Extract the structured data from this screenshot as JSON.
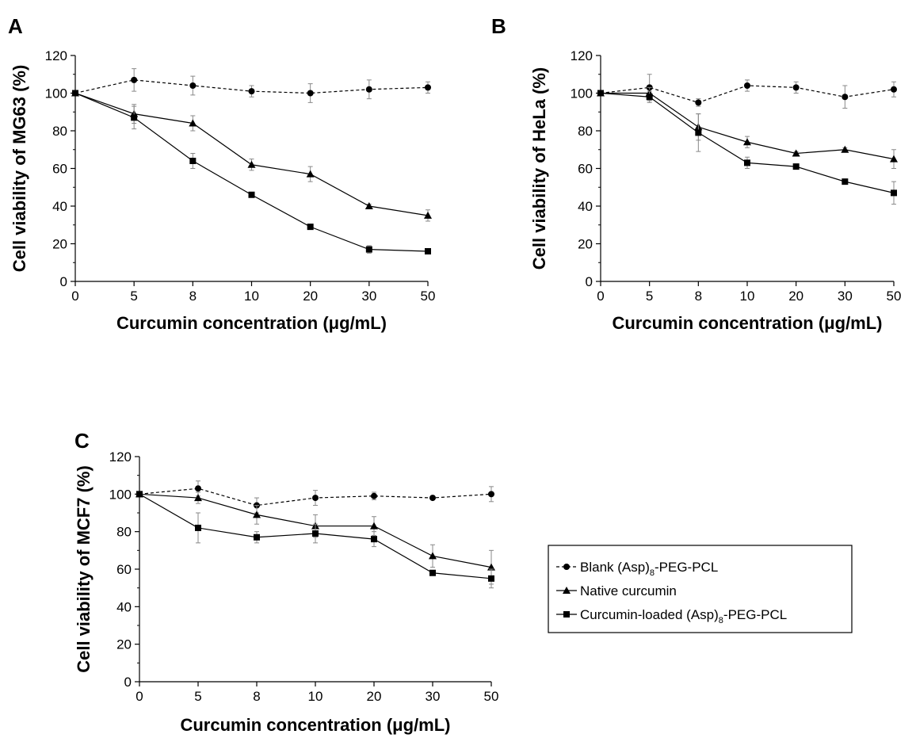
{
  "legend": {
    "items": [
      {
        "series": "blank",
        "prefix": "Blank (Asp)",
        "sub": "8",
        "suffix": "-PEG-PCL"
      },
      {
        "series": "native",
        "prefix": "Native curcumin",
        "sub": "",
        "suffix": ""
      },
      {
        "series": "loaded",
        "prefix": "Curcumin-loaded (Asp)",
        "sub": "8",
        "suffix": "-PEG-PCL"
      }
    ]
  },
  "chart_data": [
    {
      "panel": "A",
      "type": "line",
      "categories": [
        "0",
        "5",
        "8",
        "10",
        "20",
        "30",
        "50"
      ],
      "xlabel": "Curcumin concentration (μg/mL)",
      "ylabel": "Cell viability of MG63 (%)",
      "ylim": [
        0,
        120
      ],
      "yticks": [
        0,
        20,
        40,
        60,
        80,
        100,
        120
      ],
      "series": [
        {
          "name": "Blank (Asp)8-PEG-PCL",
          "key": "blank",
          "values": [
            100,
            107,
            104,
            101,
            100,
            102,
            103
          ],
          "errors": [
            0,
            6,
            5,
            3,
            5,
            5,
            3
          ]
        },
        {
          "name": "Native curcumin",
          "key": "native",
          "values": [
            100,
            89,
            84,
            62,
            57,
            40,
            35
          ],
          "errors": [
            0,
            5,
            4,
            3,
            4,
            1,
            3
          ]
        },
        {
          "name": "Curcumin-loaded (Asp)8-PEG-PCL",
          "key": "loaded",
          "values": [
            100,
            87,
            64,
            46,
            29,
            17,
            16
          ],
          "errors": [
            0,
            6,
            4,
            1,
            1,
            2,
            1
          ]
        }
      ]
    },
    {
      "panel": "B",
      "type": "line",
      "categories": [
        "0",
        "5",
        "8",
        "10",
        "20",
        "30",
        "50"
      ],
      "xlabel": "Curcumin concentration (μg/mL)",
      "ylabel": "Cell viability of HeLa (%)",
      "ylim": [
        0,
        120
      ],
      "yticks": [
        0,
        20,
        40,
        60,
        80,
        100,
        120
      ],
      "series": [
        {
          "name": "Blank (Asp)8-PEG-PCL",
          "key": "blank",
          "values": [
            100,
            103,
            95,
            104,
            103,
            98,
            102
          ],
          "errors": [
            0,
            7,
            2,
            3,
            3,
            6,
            4
          ]
        },
        {
          "name": "Native curcumin",
          "key": "native",
          "values": [
            100,
            100,
            82,
            74,
            68,
            70,
            65
          ],
          "errors": [
            0,
            3,
            7,
            3,
            1,
            1,
            5
          ]
        },
        {
          "name": "Curcumin-loaded (Asp)8-PEG-PCL",
          "key": "loaded",
          "values": [
            100,
            98,
            79,
            63,
            61,
            53,
            47
          ],
          "errors": [
            0,
            3,
            10,
            3,
            1,
            1,
            6
          ]
        }
      ]
    },
    {
      "panel": "C",
      "type": "line",
      "categories": [
        "0",
        "5",
        "8",
        "10",
        "20",
        "30",
        "50"
      ],
      "xlabel": "Curcumin concentration (μg/mL)",
      "ylabel": "Cell viability of MCF7 (%)",
      "ylim": [
        0,
        120
      ],
      "yticks": [
        0,
        20,
        40,
        60,
        80,
        100,
        120
      ],
      "series": [
        {
          "name": "Blank (Asp)8-PEG-PCL",
          "key": "blank",
          "values": [
            100,
            103,
            94,
            98,
            99,
            98,
            100
          ],
          "errors": [
            0,
            4,
            4,
            4,
            2,
            1,
            4
          ]
        },
        {
          "name": "Native curcumin",
          "key": "native",
          "values": [
            100,
            98,
            89,
            83,
            83,
            67,
            61
          ],
          "errors": [
            0,
            3,
            5,
            6,
            5,
            6,
            9
          ]
        },
        {
          "name": "Curcumin-loaded (Asp)8-PEG-PCL",
          "key": "loaded",
          "values": [
            100,
            82,
            77,
            79,
            76,
            58,
            55
          ],
          "errors": [
            0,
            8,
            3,
            5,
            4,
            1,
            5
          ]
        }
      ]
    }
  ]
}
